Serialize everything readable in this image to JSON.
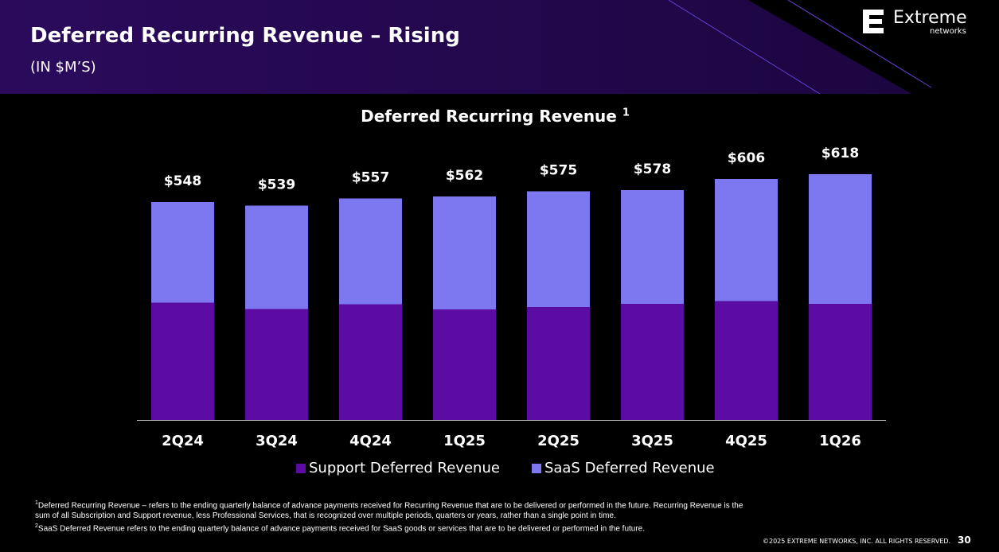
{
  "header": {
    "title": "Deferred Recurring Revenue – Rising",
    "subtitle": "(IN $M’S)"
  },
  "logo": {
    "word": "Extreme",
    "sub": "networks"
  },
  "chart_data": {
    "type": "bar",
    "stacked": true,
    "title": "Deferred Recurring Revenue",
    "title_footnote": "1",
    "categories": [
      "2Q24",
      "3Q24",
      "4Q24",
      "1Q25",
      "2Q25",
      "3Q25",
      "4Q25",
      "1Q26"
    ],
    "series": [
      {
        "name": "Support Deferred Revenue",
        "color": "#5a0ca3",
        "values": [
          295,
          279,
          291,
          278,
          284,
          292,
          299,
          292
        ]
      },
      {
        "name": "SaaS Deferred Revenue",
        "color": "#7e78f0",
        "values": [
          253,
          260,
          266,
          284,
          291,
          286,
          307,
          326
        ]
      }
    ],
    "total_labels": [
      "$548",
      "$539",
      "$557",
      "$562",
      "$575",
      "$578",
      "$606",
      "$618"
    ],
    "ylim": [
      0,
      650
    ],
    "grid": false,
    "legend": "bottom"
  },
  "footnotes": {
    "n1": "1",
    "f1": "Deferred Recurring Revenue – refers to the ending quarterly balance of advance payments received for Recurring Revenue that are to be delivered or performed in the future. Recurring Revenue is the sum of all Subscription and Support revenue, less Professional Services, that is recognized over multiple periods, quarters or years, rather than a single point in time.",
    "n2": "2",
    "f2": "SaaS Deferred Revenue refers to the ending quarterly balance of advance payments received for SaaS goods or services that are to be delivered or performed in the future."
  },
  "copyright": "©2025 EXTREME NETWORKS, INC. ALL RIGHTS RESERVED.",
  "page_number": "30"
}
